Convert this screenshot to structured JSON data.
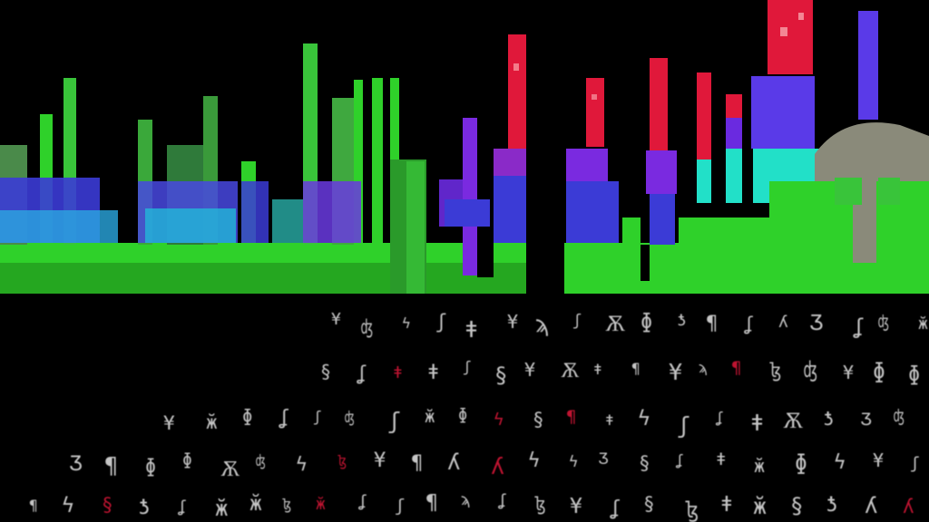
{
  "scene": {
    "description_free": true,
    "colors": {
      "background": "#000000",
      "green": "#2fd12a",
      "dark_green": "#1f8a1a",
      "blue": "#3b3bd6",
      "violet": "#7a2ae0",
      "cyan": "#22e0c8",
      "red": "#e0183a",
      "grey": "#8a8a7a",
      "glyph": "#e8e8e8"
    },
    "icons": [
      "glitch-skyline",
      "noise-glyph"
    ]
  }
}
